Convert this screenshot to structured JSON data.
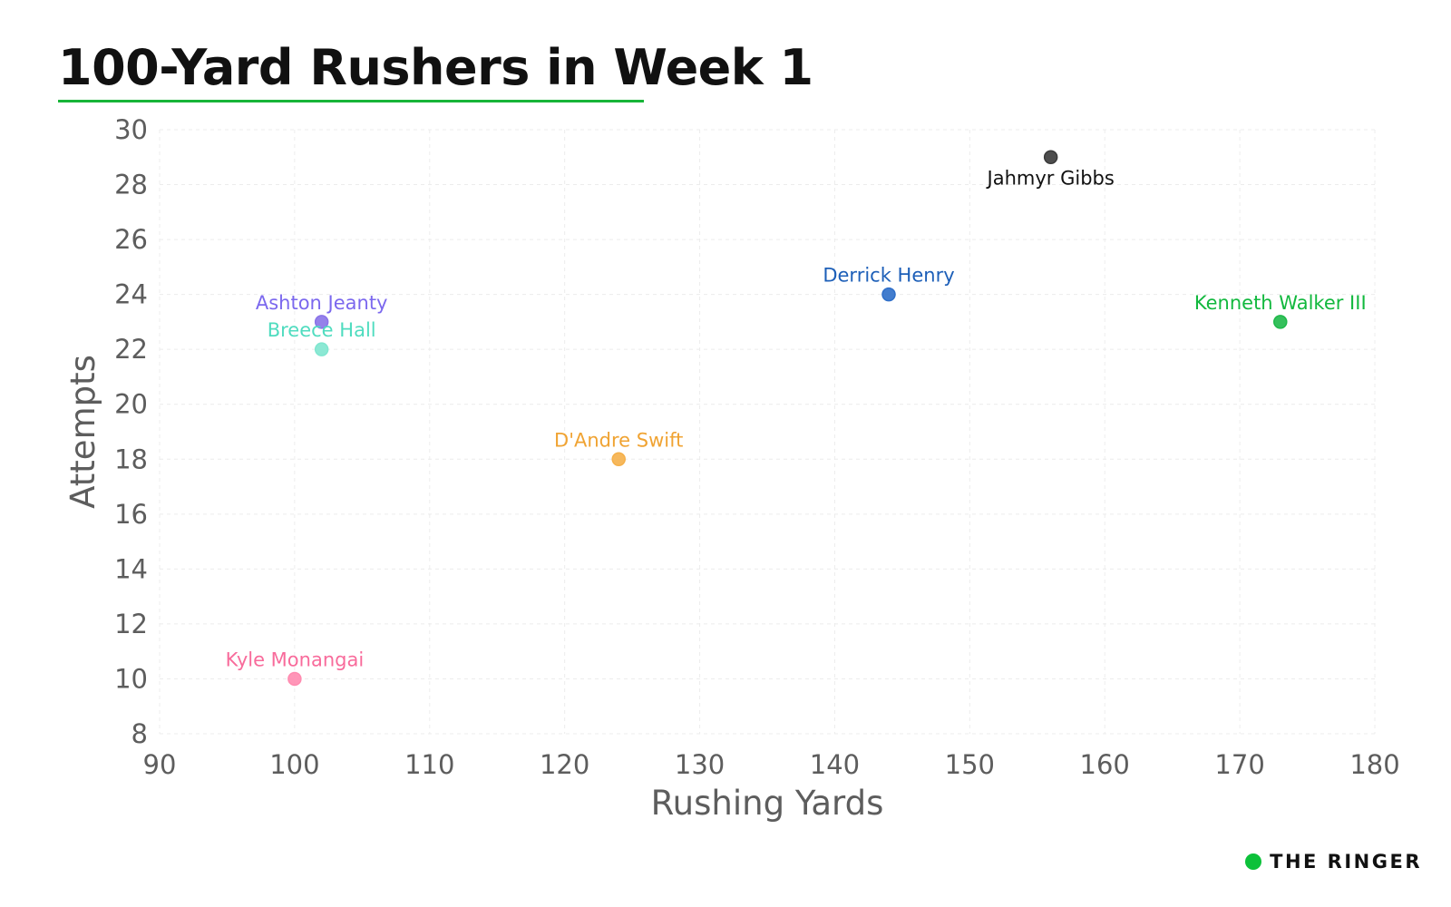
{
  "title": "100-Yard Rushers in Week 1",
  "brand": {
    "name": "THE RINGER",
    "color": "#0cc13a"
  },
  "chart_data": {
    "type": "scatter",
    "title": "100-Yard Rushers in Week 1",
    "xlabel": "Rushing Yards",
    "ylabel": "Attempts",
    "xlim": [
      90,
      180
    ],
    "ylim": [
      8,
      30
    ],
    "xticks": [
      90,
      100,
      110,
      120,
      130,
      140,
      150,
      160,
      170,
      180
    ],
    "yticks": [
      8,
      10,
      12,
      14,
      16,
      18,
      20,
      22,
      24,
      26,
      28,
      30
    ],
    "grid": true,
    "legend": "none",
    "points": [
      {
        "name": "Jahmyr Gibbs",
        "x": 156,
        "y": 29,
        "color": "#3a3a3a",
        "label_color": "#111111",
        "label_pos": "below"
      },
      {
        "name": "Derrick Henry",
        "x": 144,
        "y": 24,
        "color": "#2f6fc9",
        "label_color": "#1d5fb8",
        "label_pos": "above"
      },
      {
        "name": "Kenneth Walker III",
        "x": 173,
        "y": 23,
        "color": "#1fb94a",
        "label_color": "#12b83e",
        "label_pos": "above"
      },
      {
        "name": "Ashton Jeanty",
        "x": 102,
        "y": 23,
        "color": "#8a73e8",
        "label_color": "#7b68ee",
        "label_pos": "above"
      },
      {
        "name": "Breece Hall",
        "x": 102,
        "y": 22,
        "color": "#7fe6cf",
        "label_color": "#4fdcbf",
        "label_pos": "above"
      },
      {
        "name": "D'Andre Swift",
        "x": 124,
        "y": 18,
        "color": "#f5b04a",
        "label_color": "#f0a332",
        "label_pos": "above"
      },
      {
        "name": "Kyle Monangai",
        "x": 100,
        "y": 10,
        "color": "#ff8bb0",
        "label_color": "#f86b9b",
        "label_pos": "above"
      }
    ]
  }
}
